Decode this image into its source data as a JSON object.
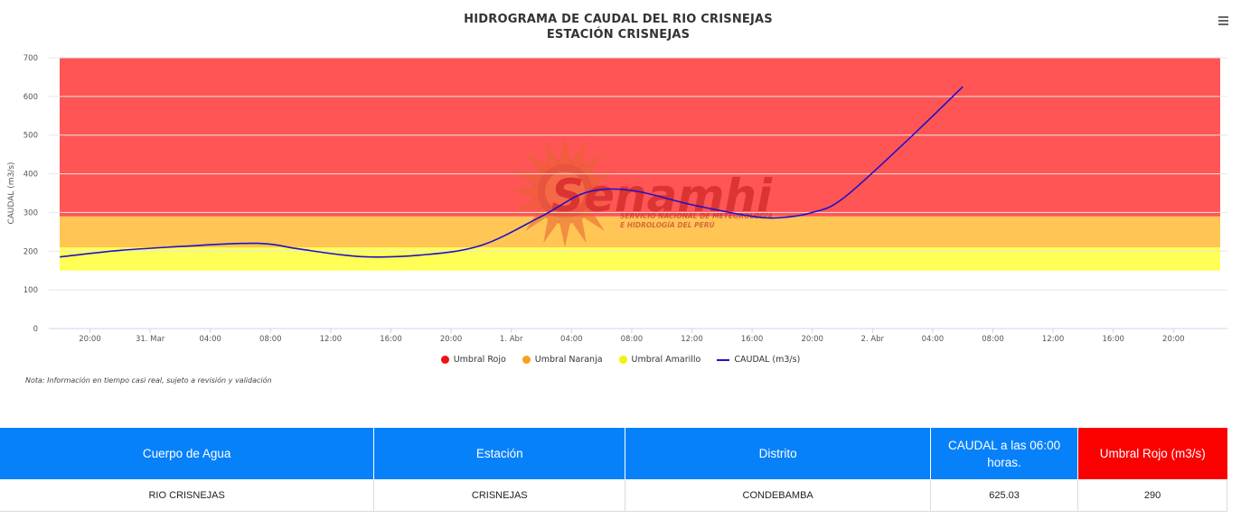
{
  "chart_data": {
    "type": "line",
    "title": "HIDROGRAMA DE CAUDAL DEL RIO CRISNEJAS",
    "subtitle": "ESTACIÓN CRISNEJAS",
    "ylabel": "CAUDAL (m3/s)",
    "ylim": [
      0,
      700
    ],
    "yticks": [
      "0",
      "100",
      "200",
      "300",
      "400",
      "500",
      "600",
      "700"
    ],
    "xticks": [
      "20:00",
      "31. Mar",
      "04:00",
      "08:00",
      "12:00",
      "16:00",
      "20:00",
      "1. Abr",
      "04:00",
      "08:00",
      "12:00",
      "16:00",
      "20:00",
      "2. Abr",
      "04:00",
      "08:00",
      "12:00",
      "16:00",
      "20:00"
    ],
    "grid": true,
    "legend_position": "bottom",
    "bands": [
      {
        "name": "Umbral Amarillo",
        "from": 150,
        "to": 210,
        "color": "#ffff55"
      },
      {
        "name": "Umbral Naranja",
        "from": 210,
        "to": 290,
        "color": "#ffc555"
      },
      {
        "name": "Umbral Rojo",
        "from": 290,
        "to": 700,
        "color": "#ff5555"
      }
    ],
    "series": [
      {
        "name": "CAUDAL (m3/s)",
        "color": "#1f10c8",
        "x": [
          "30 Mar 18:00",
          "30 Mar 22:00",
          "31 Mar 02:00",
          "31 Mar 06:00",
          "31 Mar 08:00",
          "31 Mar 10:00",
          "31 Mar 14:00",
          "31 Mar 18:00",
          "31 Mar 22:00",
          "1 Abr 02:00",
          "1 Abr 05:00",
          "1 Abr 08:00",
          "1 Abr 12:00",
          "1 Abr 16:00",
          "1 Abr 18:00",
          "1 Abr 20:00",
          "1 Abr 22:00",
          "2 Abr 02:00",
          "2 Abr 06:00"
        ],
        "values": [
          185,
          202,
          212,
          220,
          218,
          205,
          186,
          190,
          215,
          290,
          352,
          357,
          320,
          290,
          287,
          300,
          335,
          475,
          625
        ]
      }
    ]
  },
  "legend": [
    {
      "label": "Umbral Rojo",
      "color": "#ee1111",
      "kind": "dot"
    },
    {
      "label": "Umbral Naranja",
      "color": "#f7a21e",
      "kind": "dot"
    },
    {
      "label": "Umbral Amarillo",
      "color": "#f2f20a",
      "kind": "dot"
    },
    {
      "label": "CAUDAL (m3/s)",
      "color": "#1f10c8",
      "kind": "line"
    }
  ],
  "watermark": {
    "logo_text": "Senamhi",
    "line1": "SERVICIO NACIONAL DE METEOROLOGÍA",
    "line2": "E HIDROLOGÍA DEL PERÚ",
    "icon": "sun-logo-icon"
  },
  "note": "Nota: Información en tiempo casi real, sujeto a revisión y validación",
  "menu_icon": "hamburger-menu-icon",
  "table": {
    "headers": [
      "Cuerpo de Agua",
      "Estación",
      "Distrito",
      "CAUDAL a las 06:00 horas.",
      "Umbral Rojo (m3/s)"
    ],
    "row": [
      "RIO CRISNEJAS",
      "CRISNEJAS",
      "CONDEBAMBA",
      "625.03",
      "290"
    ],
    "header_color": "#0781fa",
    "header_red_color": "#fb0000"
  }
}
